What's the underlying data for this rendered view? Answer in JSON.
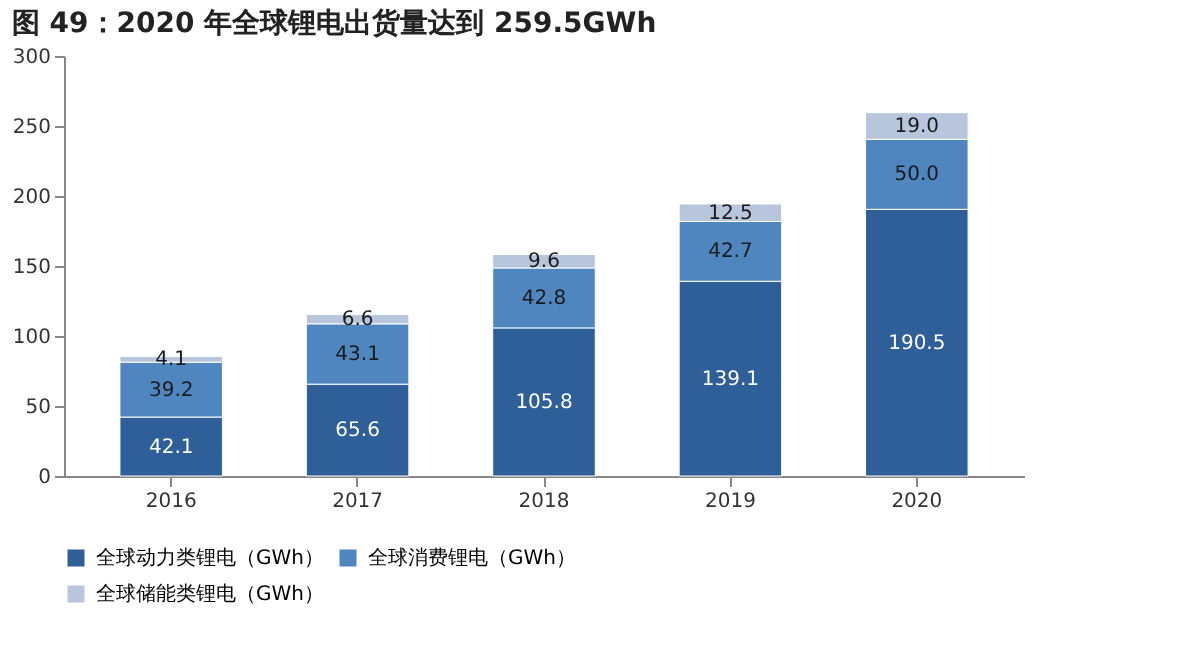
{
  "chart_data": {
    "type": "bar",
    "title": "图 49：2020 年全球锂电出货量达到 259.5GWh",
    "categories": [
      "2016",
      "2017",
      "2018",
      "2019",
      "2020"
    ],
    "stacked": true,
    "legend": "bottom",
    "grid": false,
    "ylim": [
      0,
      300
    ],
    "yticks": [
      0,
      50,
      100,
      150,
      200,
      250,
      300
    ],
    "series": [
      {
        "name": "全球动力类锂电（GWh）",
        "color": "#2f5f98",
        "values": [
          42.1,
          65.6,
          105.8,
          139.1,
          190.5
        ],
        "value_labels": [
          "42.1",
          "65.6",
          "105.8",
          "139.1",
          "190.5"
        ]
      },
      {
        "name": "全球消费锂电（GWh）",
        "color": "#4f86c0",
        "values": [
          39.2,
          43.1,
          42.8,
          42.7,
          50.0
        ],
        "value_labels": [
          "39.2",
          "43.1",
          "42.8",
          "42.7",
          "50.0"
        ]
      },
      {
        "name": "全球储能类锂电（GWh）",
        "color": "#b7c6dc",
        "values": [
          4.1,
          6.6,
          9.6,
          12.5,
          19.0
        ],
        "value_labels": [
          "4.1",
          "6.6",
          "9.6",
          "12.5",
          "19.0"
        ]
      }
    ]
  }
}
